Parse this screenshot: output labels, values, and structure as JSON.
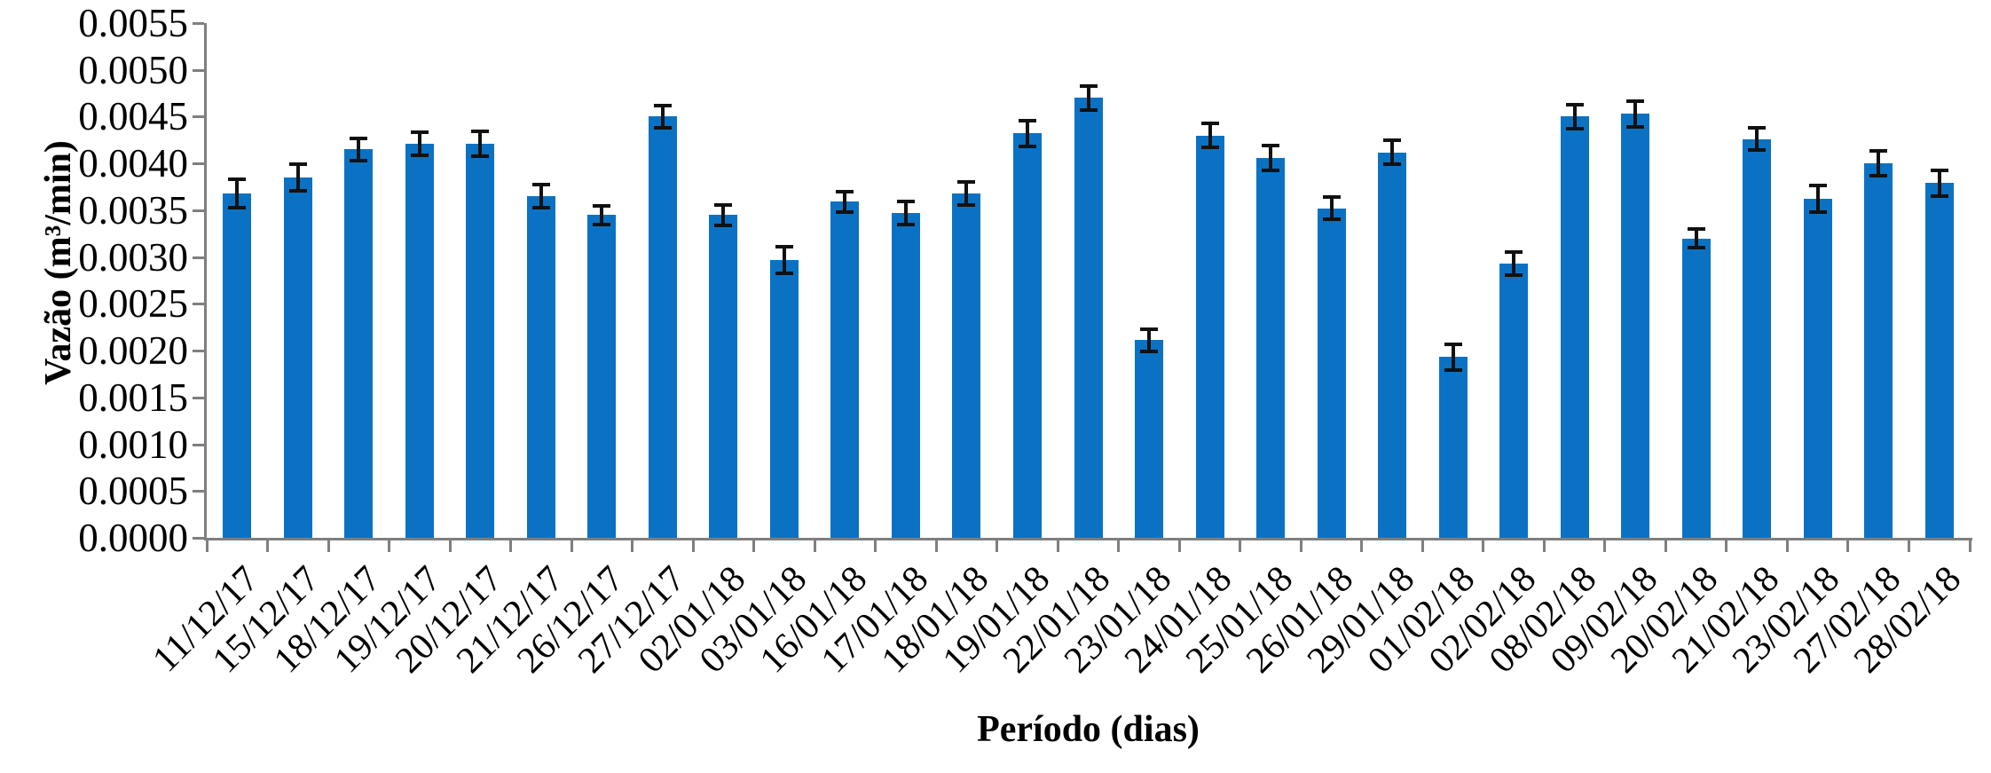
{
  "chart_data": {
    "type": "bar",
    "title": "",
    "xlabel": "Período (dias)",
    "ylabel": "Vazão (m³/min)",
    "categories": [
      "11/12/17",
      "15/12/17",
      "18/12/17",
      "19/12/17",
      "20/12/17",
      "21/12/17",
      "26/12/17",
      "27/12/17",
      "02/01/18",
      "03/01/18",
      "16/01/18",
      "17/01/18",
      "18/01/18",
      "19/01/18",
      "22/01/18",
      "23/01/18",
      "24/01/18",
      "25/01/18",
      "26/01/18",
      "29/01/18",
      "01/02/18",
      "02/02/18",
      "08/02/18",
      "09/02/18",
      "20/02/18",
      "21/02/18",
      "23/02/18",
      "27/02/18",
      "28/02/18"
    ],
    "values": [
      0.00368,
      0.00385,
      0.00415,
      0.00421,
      0.00421,
      0.00365,
      0.00345,
      0.0045,
      0.00345,
      0.00297,
      0.00359,
      0.00347,
      0.00368,
      0.00432,
      0.0047,
      0.00211,
      0.0043,
      0.00406,
      0.00352,
      0.00412,
      0.00193,
      0.00293,
      0.0045,
      0.00453,
      0.0032,
      0.00426,
      0.00362,
      0.004,
      0.00379
    ],
    "errors": [
      0.00015,
      0.00014,
      0.00012,
      0.00012,
      0.00013,
      0.00012,
      0.0001,
      0.00012,
      0.00011,
      0.00014,
      0.00011,
      0.00012,
      0.00012,
      0.00014,
      0.00013,
      0.00012,
      0.00013,
      0.00013,
      0.00012,
      0.00013,
      0.00014,
      0.00012,
      0.00013,
      0.00014,
      0.0001,
      0.00012,
      0.00014,
      0.00013,
      0.00014
    ],
    "ylim": [
      0,
      0.0055
    ],
    "ytick_step": 0.0005,
    "ytick_decimals": 4,
    "grid": "off",
    "legend": "none",
    "x_tick_label_rotation_deg": 45,
    "bar_color": "#0b72c3",
    "error_color": "#111111",
    "axis_color": "#7f7f7f",
    "text_color": "#000000"
  }
}
